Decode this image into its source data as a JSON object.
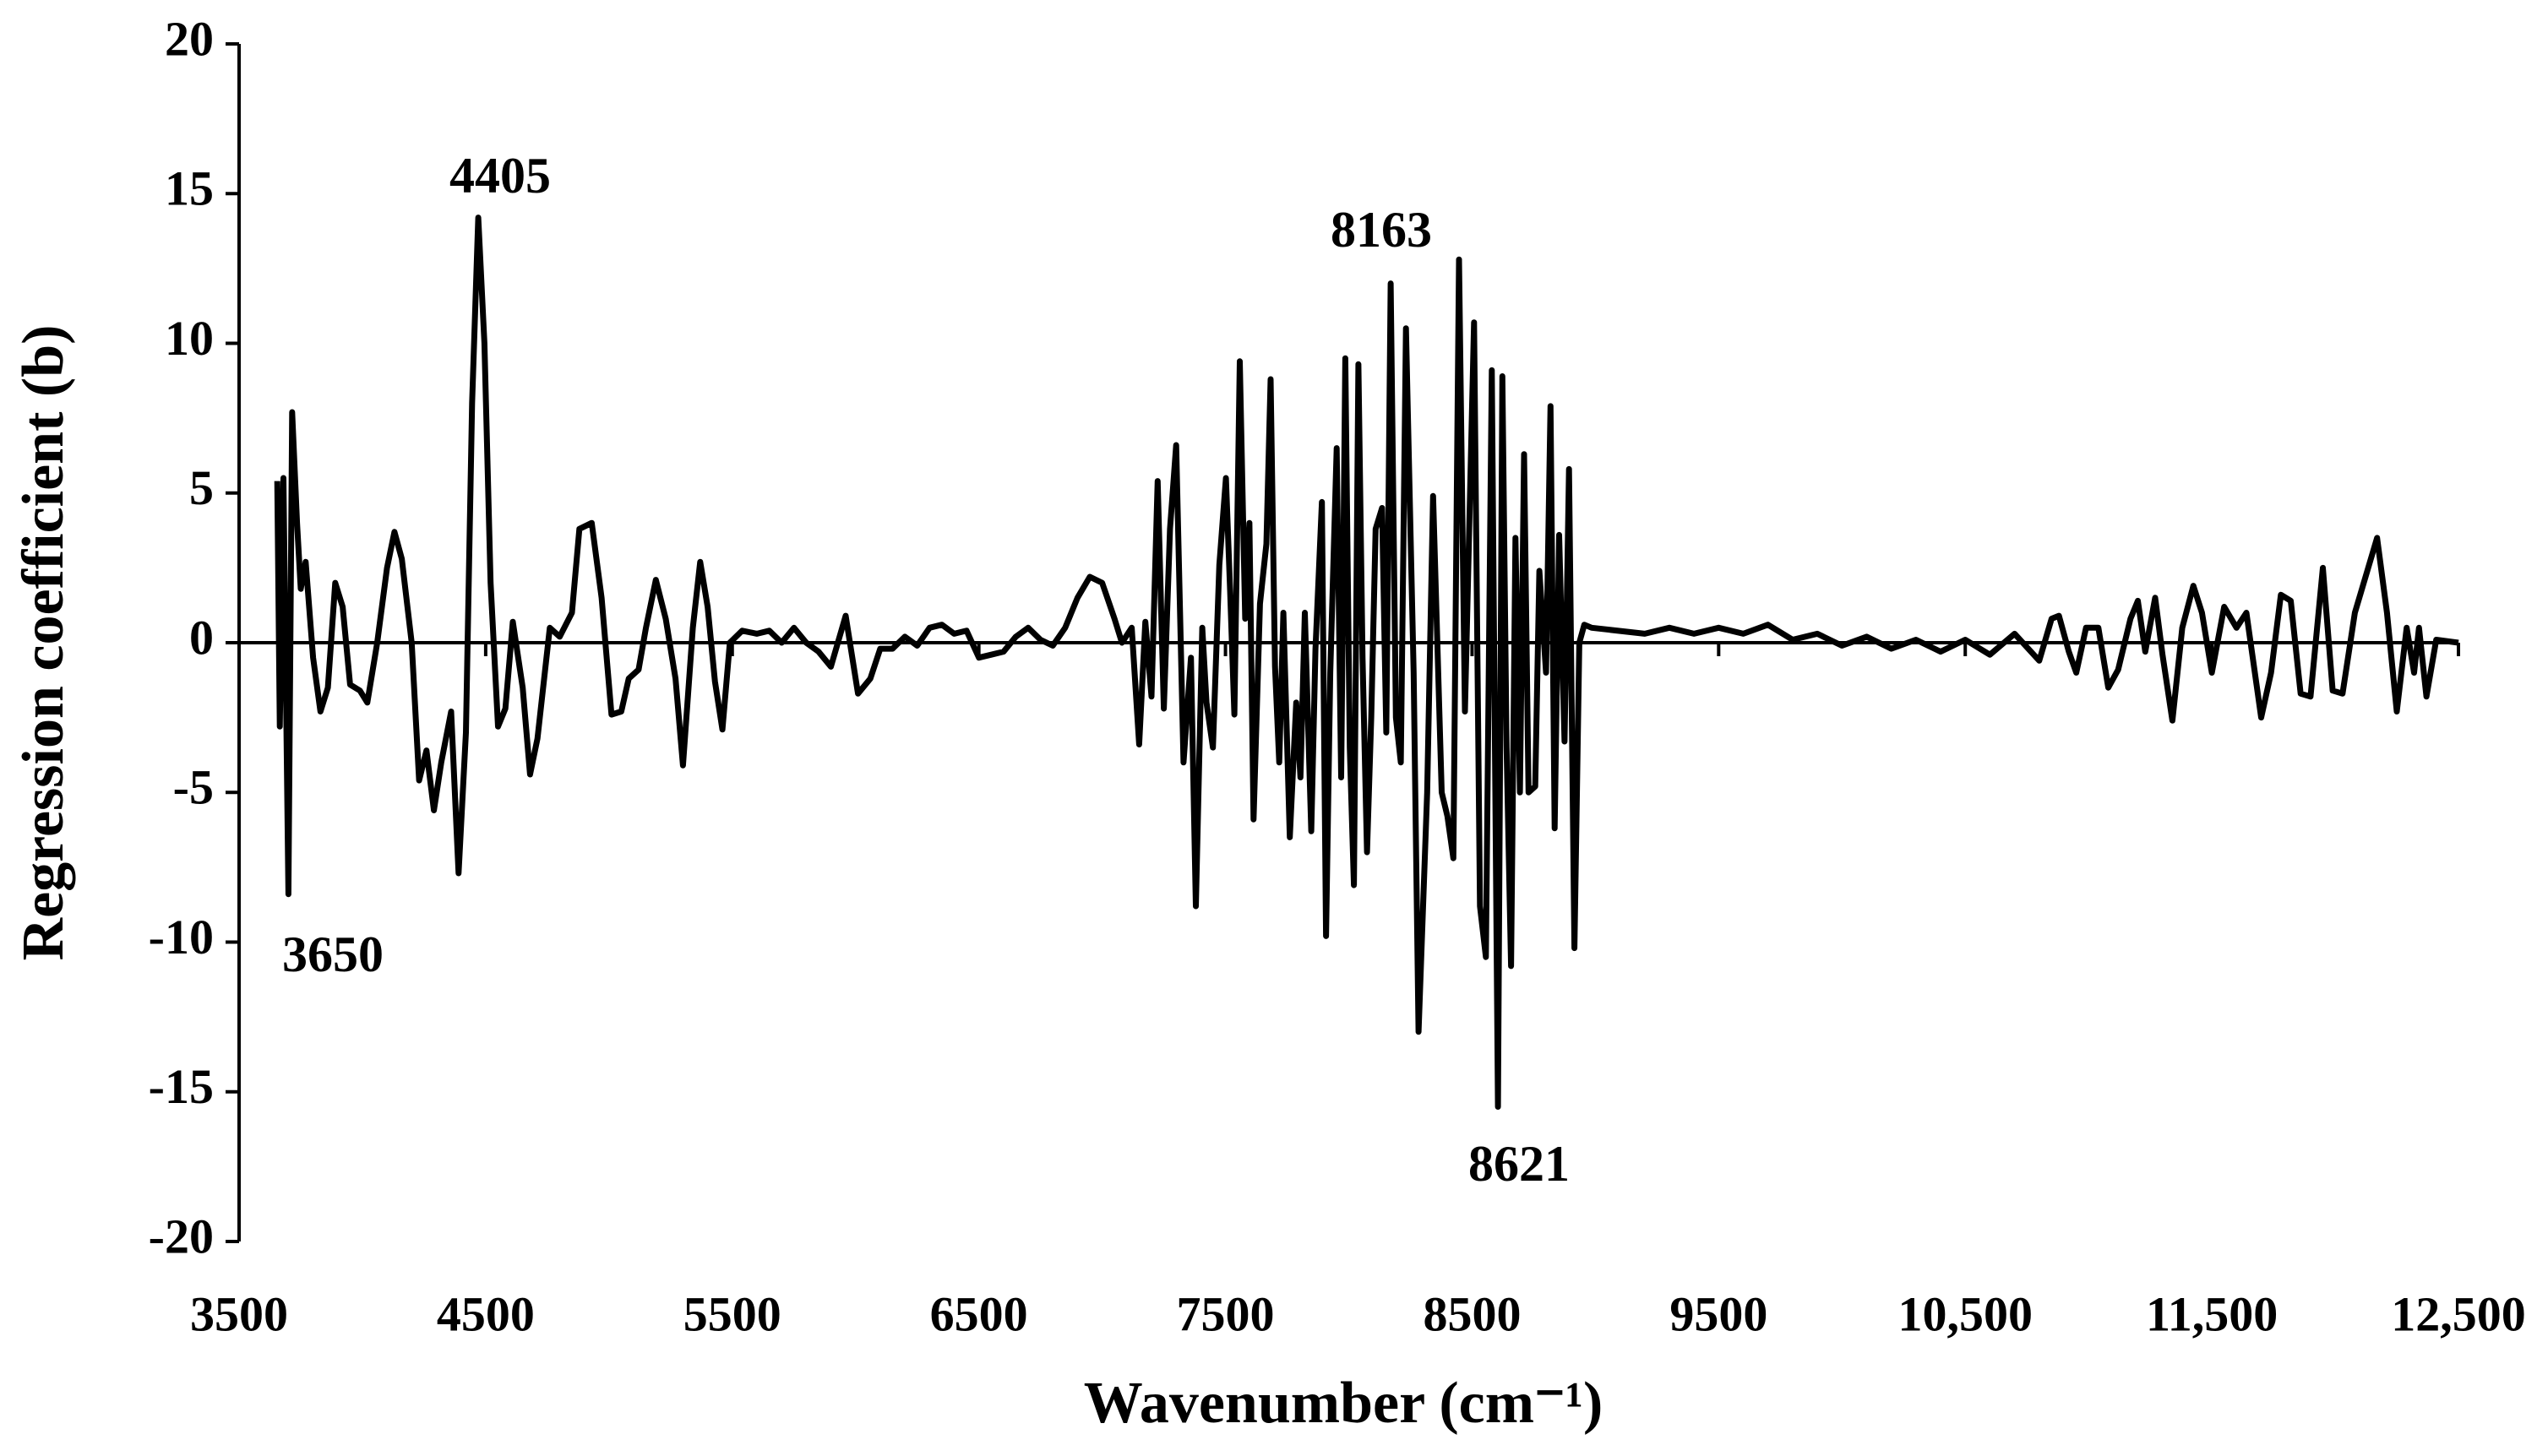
{
  "chart_data": {
    "type": "line",
    "x_label": "Wavenumber (cm⁻¹)",
    "y_label": "Regression coefficient (b)",
    "annotations": [
      "4405",
      "8163",
      "3650",
      "8621"
    ],
    "color": "#000000",
    "xlim": [
      3500,
      12500
    ],
    "xticks": [
      3500,
      4500,
      5500,
      6500,
      7500,
      8500,
      9500,
      {
        "value": 10500,
        "label": "10,500"
      },
      {
        "value": 11500,
        "label": "11,500"
      },
      {
        "value": 12500,
        "label": "12,500"
      }
    ],
    "ylim": [
      -20,
      20
    ],
    "yticks": [
      -20,
      -15,
      -10,
      -5,
      0,
      5,
      10,
      15,
      20
    ],
    "x": [
      3655,
      3665,
      3680,
      3700,
      3715,
      3735,
      3750,
      3770,
      3800,
      3830,
      3860,
      3890,
      3920,
      3950,
      3990,
      4020,
      4060,
      4100,
      4130,
      4160,
      4200,
      4230,
      4260,
      4290,
      4320,
      4360,
      4390,
      4420,
      4445,
      4470,
      4495,
      4520,
      4550,
      4580,
      4610,
      4650,
      4680,
      4710,
      4760,
      4800,
      4850,
      4880,
      4930,
      4970,
      5010,
      5050,
      5080,
      5120,
      5150,
      5190,
      5230,
      5270,
      5300,
      5340,
      5370,
      5400,
      5430,
      5460,
      5490,
      5540,
      5600,
      5650,
      5700,
      5750,
      5800,
      5850,
      5900,
      5960,
      6010,
      6060,
      6100,
      6150,
      6200,
      6250,
      6300,
      6350,
      6400,
      6450,
      6500,
      6550,
      6600,
      6650,
      6700,
      6750,
      6800,
      6850,
      6900,
      6950,
      7000,
      7050,
      7080,
      7120,
      7150,
      7175,
      7200,
      7225,
      7250,
      7275,
      7300,
      7330,
      7360,
      7380,
      7406,
      7423,
      7449,
      7475,
      7502,
      7519,
      7536,
      7558,
      7580,
      7597,
      7614,
      7640,
      7666,
      7683,
      7701,
      7718,
      7735,
      7761,
      7787,
      7804,
      7822,
      7848,
      7865,
      7891,
      7908,
      7925,
      7951,
      7969,
      7986,
      8004,
      8021,
      8039,
      8056,
      8074,
      8091,
      8109,
      8135,
      8152,
      8170,
      8191,
      8211,
      8232,
      8263,
      8283,
      8318,
      8342,
      8377,
      8400,
      8424,
      8447,
      8471,
      8508,
      8532,
      8556,
      8580,
      8605,
      8623,
      8640,
      8658,
      8676,
      8694,
      8711,
      8729,
      8756,
      8773,
      8800,
      8818,
      8835,
      8853,
      8875,
      8893,
      8915,
      8935,
      8955,
      8985,
      9200,
      9300,
      9400,
      9500,
      9600,
      9700,
      9800,
      9900,
      10000,
      10100,
      10200,
      10300,
      10400,
      10500,
      10600,
      10700,
      10800,
      10850,
      10880,
      10920,
      10950,
      10990,
      11040,
      11080,
      11120,
      11170,
      11200,
      11230,
      11270,
      11300,
      11340,
      11380,
      11425,
      11460,
      11500,
      11550,
      11600,
      11640,
      11700,
      11740,
      11780,
      11820,
      11860,
      11900,
      11950,
      11990,
      12030,
      12080,
      12170,
      12210,
      12250,
      12290,
      12320,
      12340,
      12370,
      12410,
      12500
    ],
    "values": [
      5.4,
      -2.8,
      5.5,
      -8.4,
      7.7,
      4.0,
      1.8,
      2.7,
      -0.5,
      -2.3,
      -1.5,
      2.0,
      1.2,
      -1.4,
      -1.6,
      -2.0,
      0.0,
      2.5,
      3.7,
      2.8,
      0.0,
      -4.6,
      -3.6,
      -5.6,
      -4.0,
      -2.3,
      -7.7,
      -3.0,
      8,
      14.2,
      10,
      2,
      -2.8,
      -2.2,
      0.7,
      -1.5,
      -4.4,
      -3.2,
      0.5,
      0.2,
      1.0,
      3.8,
      4.0,
      1.5,
      -2.4,
      -2.3,
      -1.2,
      -0.9,
      0.5,
      2.1,
      0.8,
      -1.2,
      -4.1,
      0.5,
      2.7,
      1.2,
      -1.3,
      -2.9,
      0.0,
      0.4,
      0.3,
      0.4,
      0.0,
      0.5,
      0.0,
      -0.3,
      -0.8,
      0.9,
      -1.7,
      -1.2,
      -0.2,
      -0.2,
      0.2,
      -0.1,
      0.5,
      0.6,
      0.3,
      0.4,
      -0.5,
      -0.4,
      -0.3,
      0.2,
      0.5,
      0.1,
      -0.1,
      0.5,
      1.5,
      2.2,
      2.0,
      0.8,
      0.0,
      0.5,
      -3.4,
      0.7,
      -1.8,
      5.4,
      -2.2,
      3.8,
      6.6,
      -4.0,
      -0.5,
      -8.8,
      0.5,
      -2.0,
      -3.5,
      2.6,
      5.5,
      1.7,
      -2.4,
      9.4,
      0.8,
      4.0,
      -5.9,
      1.3,
      3.3,
      8.8,
      -0.8,
      -4,
      1.0,
      -6.5,
      -2.0,
      -4.5,
      1.0,
      -6.3,
      -0.2,
      4.7,
      -9.8,
      -1.0,
      6.5,
      -4.5,
      9.5,
      -3.5,
      -8.1,
      9.3,
      -0.5,
      -7.0,
      -2.5,
      3.8,
      4.5,
      -3,
      12.0,
      -2.5,
      -4,
      10.5,
      -1,
      -13.0,
      -5.0,
      4.9,
      -5,
      -5.8,
      -7.2,
      12.8,
      -2.3,
      10.7,
      -8.8,
      -10.5,
      9.1,
      -15.5,
      8.9,
      -3.5,
      -10.8,
      3.5,
      -5.0,
      6.3,
      -5,
      -4.8,
      2.4,
      -1.0,
      7.9,
      -6.2,
      3.6,
      -3.3,
      5.8,
      -10.2,
      0.0,
      0.6,
      0.5,
      0.3,
      0.5,
      0.3,
      0.5,
      0.3,
      0.6,
      0.1,
      0.3,
      -0.1,
      0.2,
      -0.2,
      0.1,
      -0.3,
      0.1,
      -0.4,
      0.3,
      -0.6,
      0.8,
      0.9,
      -0.3,
      -1.0,
      0.5,
      0.5,
      -1.5,
      -0.9,
      0.8,
      1.4,
      -0.3,
      1.5,
      -0.4,
      -2.6,
      0.5,
      1.9,
      1.0,
      -1.0,
      1.2,
      0.5,
      1.0,
      -2.5,
      -1.0,
      1.6,
      1.4,
      -1.7,
      -1.8,
      2.5,
      -1.6,
      -1.7,
      1.0,
      3.5,
      1.0,
      -2.3,
      0.5,
      -1.0,
      0.5,
      -1.8,
      0.1,
      0.0
    ]
  }
}
